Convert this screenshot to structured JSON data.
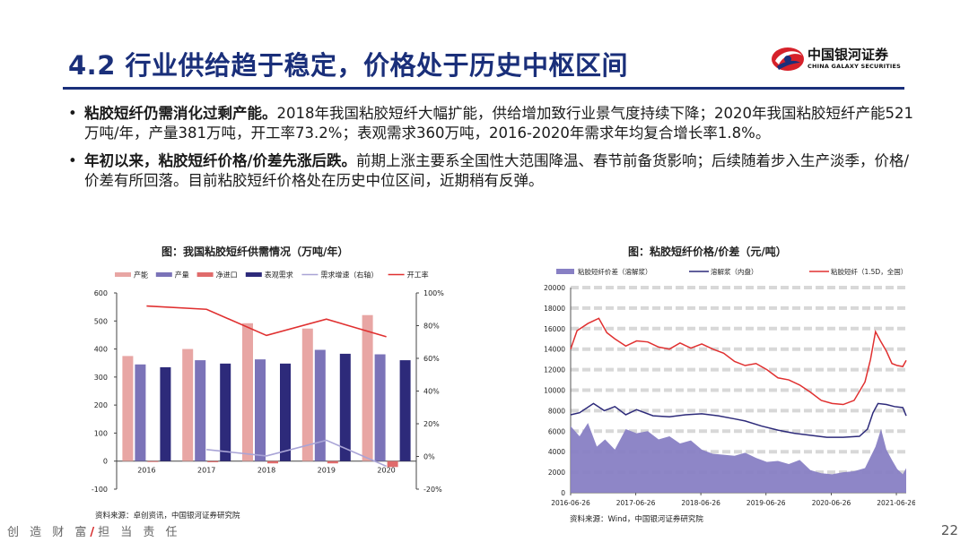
{
  "header": {
    "title": "4.2 行业供给趋于稳定，价格处于历史中枢区间",
    "logo_cn": "中国银河证券",
    "logo_en": "CHINA GALAXY SECURITIES"
  },
  "bullets": [
    {
      "bold": "粘胶短纤仍需消化过剩产能。",
      "text": "2018年我国粘胶短纤大幅扩能，供给增加致行业景气度持续下降；2020年我国粘胶短纤产能521万吨/年，产量381万吨，开工率73.2%；表观需求360万吨，2016-2020年需求年均复合增长率1.8%。"
    },
    {
      "bold": "年初以来，粘胶短纤价格/价差先涨后跌。",
      "text": "前期上涨主要系全国性大范围降温、春节前备货影响；后续随着步入生产淡季，价格/价差有所回落。目前粘胶短纤价格处在历史中位区间，近期稍有反弹。"
    }
  ],
  "chart_data": [
    {
      "type": "bar",
      "title": "图：我国粘胶短纤供需情况（万吨/年）",
      "categories": [
        "2016",
        "2017",
        "2018",
        "2019",
        "2020"
      ],
      "series": [
        {
          "name": "产能",
          "kind": "bar",
          "color": "#e8a6a4",
          "values": [
            375,
            400,
            492,
            473,
            521
          ]
        },
        {
          "name": "产量",
          "kind": "bar",
          "color": "#7b73b8",
          "values": [
            345,
            360,
            363,
            397,
            381
          ]
        },
        {
          "name": "净进口",
          "kind": "bar",
          "color": "#e06b6b",
          "values": [
            -3,
            -4,
            -8,
            -8,
            -21
          ]
        },
        {
          "name": "表观需求",
          "kind": "bar",
          "color": "#2d2a7a",
          "values": [
            335,
            348,
            348,
            383,
            360
          ]
        },
        {
          "name": "需求增速（右轴）",
          "kind": "line",
          "axis": "right",
          "color": "#a9a4d6",
          "values": [
            null,
            4.2,
            0.3,
            9.9,
            -6.0
          ]
        },
        {
          "name": "开工率",
          "kind": "line",
          "axis": "right",
          "color": "#e03030",
          "values": [
            92,
            90,
            74,
            84,
            73.2
          ]
        }
      ],
      "ylim": [
        -100,
        600
      ],
      "yticks": [
        "600",
        "500",
        "400",
        "300",
        "200",
        "100",
        "0",
        "-100"
      ],
      "y2lim": [
        -20,
        100
      ],
      "y2ticks": [
        "100%",
        "80%",
        "60%",
        "40%",
        "20%",
        "0%",
        "-20%"
      ],
      "legend": "top",
      "grid": false,
      "source": "资料来源：卓创资讯，中国银河证券研究院"
    },
    {
      "type": "line",
      "title": "图：粘胶短纤价格/价差（元/吨）",
      "x_ticks": [
        "2016-06-26",
        "2017-06-26",
        "2018-06-26",
        "2019-06-26",
        "2020-06-26",
        "2021-06-26"
      ],
      "ylim": [
        0,
        20000
      ],
      "yticks": [
        "20000",
        "18000",
        "16000",
        "14000",
        "12000",
        "10000",
        "8000",
        "6000",
        "4000",
        "2000",
        "0"
      ],
      "x_domain": [
        "2016-06-26",
        "2021-08-20"
      ],
      "series": [
        {
          "name": "粘胶短纤价差（溶解浆）",
          "kind": "area",
          "color": "#8880c4",
          "x": [
            "2016-06-26",
            "2016-08-15",
            "2016-10-01",
            "2016-11-20",
            "2017-01-05",
            "2017-03-01",
            "2017-05-01",
            "2017-07-01",
            "2017-09-01",
            "2017-11-01",
            "2018-01-01",
            "2018-03-01",
            "2018-05-01",
            "2018-07-01",
            "2018-09-01",
            "2018-11-01",
            "2019-01-01",
            "2019-03-01",
            "2019-05-01",
            "2019-07-01",
            "2019-09-01",
            "2019-11-01",
            "2020-01-01",
            "2020-03-01",
            "2020-05-01",
            "2020-07-01",
            "2020-09-01",
            "2020-11-01",
            "2021-01-01",
            "2021-02-01",
            "2021-03-01",
            "2021-04-01",
            "2021-05-01",
            "2021-06-01",
            "2021-07-01",
            "2021-08-01",
            "2021-08-20"
          ],
          "values": [
            6500,
            5500,
            6800,
            4500,
            5200,
            4200,
            6200,
            5800,
            6000,
            5200,
            5500,
            4800,
            5100,
            4200,
            3800,
            3700,
            3600,
            3900,
            3400,
            3000,
            3100,
            2800,
            3200,
            2200,
            1900,
            1800,
            2000,
            2100,
            2400,
            3500,
            4500,
            6200,
            4200,
            3200,
            2300,
            1800,
            2400
          ]
        },
        {
          "name": "溶解浆（内盘）",
          "kind": "line",
          "color": "#2d2a7a",
          "x": [
            "2016-06-26",
            "2016-08-15",
            "2016-11-01",
            "2017-01-01",
            "2017-03-01",
            "2017-05-01",
            "2017-07-01",
            "2017-10-01",
            "2018-01-01",
            "2018-04-01",
            "2018-07-01",
            "2018-10-01",
            "2019-01-01",
            "2019-03-01",
            "2019-06-01",
            "2019-09-01",
            "2019-12-01",
            "2020-03-01",
            "2020-06-01",
            "2020-09-01",
            "2020-12-01",
            "2021-01-15",
            "2021-02-15",
            "2021-03-15",
            "2021-05-01",
            "2021-06-15",
            "2021-08-01",
            "2021-08-20"
          ],
          "values": [
            7600,
            7800,
            8700,
            8000,
            8400,
            7600,
            8100,
            7500,
            7400,
            7600,
            7700,
            7500,
            7200,
            7000,
            6500,
            6100,
            5800,
            5600,
            5400,
            5400,
            5500,
            6200,
            7800,
            8700,
            8600,
            8400,
            8300,
            7500
          ]
        },
        {
          "name": "粘胶短纤（1.5D，全国）",
          "kind": "line",
          "color": "#e03030",
          "x": [
            "2016-06-26",
            "2016-08-01",
            "2016-10-01",
            "2016-12-01",
            "2017-01-15",
            "2017-03-01",
            "2017-05-01",
            "2017-07-01",
            "2017-09-01",
            "2017-11-01",
            "2018-01-01",
            "2018-03-01",
            "2018-05-01",
            "2018-07-01",
            "2018-09-01",
            "2018-11-01",
            "2019-01-01",
            "2019-03-01",
            "2019-05-01",
            "2019-07-01",
            "2019-09-01",
            "2019-11-01",
            "2020-01-01",
            "2020-03-01",
            "2020-05-01",
            "2020-07-01",
            "2020-09-01",
            "2020-11-01",
            "2021-01-01",
            "2021-02-01",
            "2021-03-01",
            "2021-04-01",
            "2021-05-01",
            "2021-06-01",
            "2021-07-01",
            "2021-08-01",
            "2021-08-20"
          ],
          "values": [
            14000,
            15800,
            16500,
            17000,
            15600,
            15000,
            14300,
            14800,
            14700,
            14200,
            14000,
            14600,
            14100,
            14500,
            14000,
            13600,
            12800,
            12400,
            12600,
            12000,
            11200,
            11000,
            10500,
            9800,
            9000,
            8700,
            8600,
            9000,
            10800,
            13000,
            15700,
            14700,
            13800,
            12600,
            12400,
            12300,
            12900
          ]
        }
      ],
      "legend": "top",
      "grid": true,
      "source": "资料来源：Wind，中国银河证券研究院"
    }
  ],
  "footer": {
    "left_a": "创 造 财 富",
    "slash": "/",
    "left_b": "担 当 责 任",
    "page": "22"
  }
}
